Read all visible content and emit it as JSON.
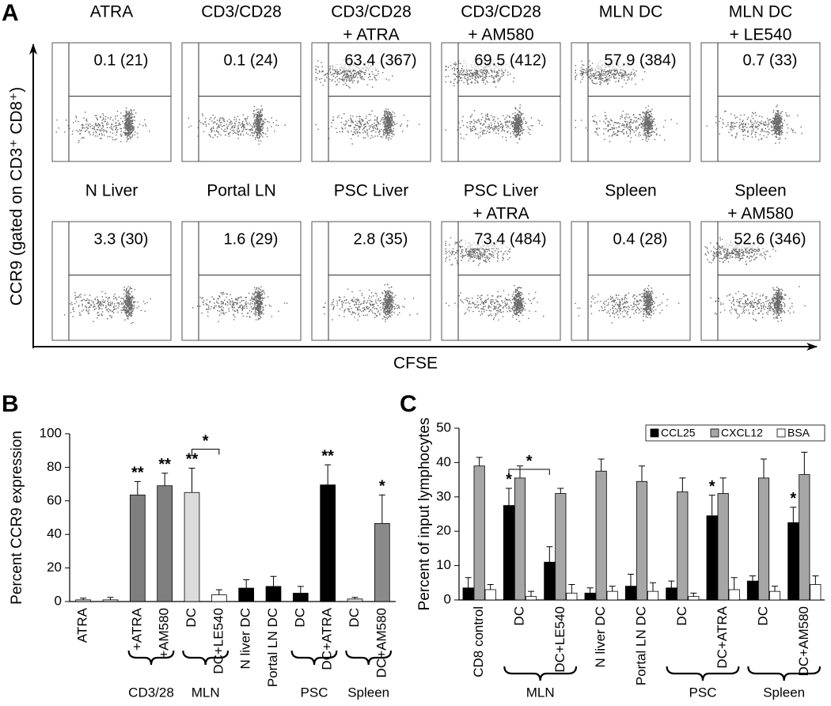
{
  "panel_a": {
    "label": "A",
    "y_label": "CCR9 (gated on CD3⁺ CD8⁺)",
    "x_label": "CFSE",
    "plots": [
      {
        "title": [
          "ATRA"
        ],
        "gate": "0.1 (21)"
      },
      {
        "title": [
          "CD3/CD28"
        ],
        "gate": "0.1 (24)"
      },
      {
        "title": [
          "CD3/CD28",
          "+ ATRA"
        ],
        "gate": "63.4 (367)"
      },
      {
        "title": [
          "CD3/CD28",
          "+ AM580"
        ],
        "gate": "69.5 (412)"
      },
      {
        "title": [
          "MLN DC"
        ],
        "gate": "57.9 (384)"
      },
      {
        "title": [
          "MLN DC",
          "+ LE540"
        ],
        "gate": "0.7 (33)"
      },
      {
        "title": [
          "N Liver"
        ],
        "gate": "3.3 (30)"
      },
      {
        "title": [
          "Portal LN"
        ],
        "gate": "1.6 (29)"
      },
      {
        "title": [
          "PSC Liver"
        ],
        "gate": "2.8 (35)"
      },
      {
        "title": [
          "PSC Liver",
          "+ ATRA"
        ],
        "gate": "73.4 (484)"
      },
      {
        "title": [
          "Spleen"
        ],
        "gate": "0.4 (28)"
      },
      {
        "title": [
          "Spleen",
          "+ AM580"
        ],
        "gate": "52.6 (346)"
      }
    ]
  },
  "chart_data": [
    {
      "type": "bar",
      "label": "B",
      "y_label": "Percent CCR9 expression",
      "categories": [
        "ATRA",
        null,
        "+ATRA",
        "+AM580",
        "DC",
        "DC+LE540",
        "N liver DC",
        "Portal LN DC",
        "DC",
        "DC+ATRA",
        "DC",
        "DC+AM580"
      ],
      "values": [
        1,
        1,
        63.5,
        69,
        65,
        4,
        8,
        9,
        5,
        69.5,
        1.5,
        46.5
      ],
      "errors": [
        1,
        1.5,
        8,
        7.5,
        14.5,
        3,
        5,
        6,
        4,
        12,
        1,
        17
      ],
      "colors": [
        "#d9d9d9",
        "#d9d9d9",
        "#7f7f7f",
        "#7f7f7f",
        "#dcdcdc",
        "#ffffff",
        "#000000",
        "#000000",
        "#000000",
        "#000000",
        "#dcdcdc",
        "#8a8a8a"
      ],
      "significance": [
        null,
        null,
        "**",
        "**",
        "**",
        null,
        null,
        null,
        null,
        "**",
        null,
        "*"
      ],
      "bracket": {
        "label": "*",
        "categories": [
          4,
          5
        ]
      },
      "groups": [
        {
          "label": "CD3/28",
          "categories": [
            2,
            3
          ]
        },
        {
          "label": "MLN",
          "categories": [
            4,
            5
          ]
        },
        {
          "label": "PSC",
          "categories": [
            8,
            9
          ]
        },
        {
          "label": "Spleen",
          "categories": [
            10,
            11
          ]
        }
      ],
      "ylim": [
        0,
        100
      ],
      "yticks": [
        0,
        20,
        40,
        60,
        80,
        100
      ]
    },
    {
      "type": "bar",
      "label": "C",
      "y_label": "Percent of input lymphocytes",
      "categories": [
        "CD8 control",
        "DC",
        "DC+LE540",
        "N liver DC",
        "Portal LN DC",
        "DC",
        "DC+ATRA",
        "DC",
        "DC+AM580"
      ],
      "series": [
        {
          "name": "CCL25",
          "color": "#000000",
          "values": [
            3.5,
            27.5,
            11,
            2,
            4,
            3.5,
            24.5,
            5.5,
            22.5
          ],
          "errors": [
            3,
            5,
            4.5,
            1.5,
            3.5,
            2,
            6,
            1.5,
            4.5
          ],
          "significance": [
            null,
            "*",
            null,
            null,
            null,
            null,
            "*",
            null,
            "*"
          ]
        },
        {
          "name": "CXCL12",
          "color": "#a6a6a6",
          "values": [
            39,
            35.5,
            31,
            37.5,
            34.5,
            31.5,
            31,
            35.5,
            36.5
          ],
          "errors": [
            2.5,
            3.5,
            1.5,
            3.5,
            4.5,
            4,
            4.5,
            5.5,
            6.5
          ]
        },
        {
          "name": "BSA",
          "color": "#ffffff",
          "values": [
            3,
            1,
            2,
            2.5,
            2.5,
            1,
            3,
            2.5,
            4.5
          ],
          "errors": [
            1.5,
            1.5,
            2.5,
            1.5,
            2.5,
            1,
            3.5,
            1.5,
            2.5
          ]
        }
      ],
      "bracket": {
        "label": "*",
        "categories": [
          1,
          2
        ]
      },
      "groups": [
        {
          "label": "MLN",
          "categories": [
            1,
            2
          ]
        },
        {
          "label": "PSC",
          "categories": [
            5,
            6
          ]
        },
        {
          "label": "Spleen",
          "categories": [
            7,
            8
          ]
        }
      ],
      "legend": "upper right",
      "ylim": [
        0,
        50
      ],
      "yticks": [
        0,
        10,
        20,
        30,
        40,
        50
      ]
    }
  ]
}
